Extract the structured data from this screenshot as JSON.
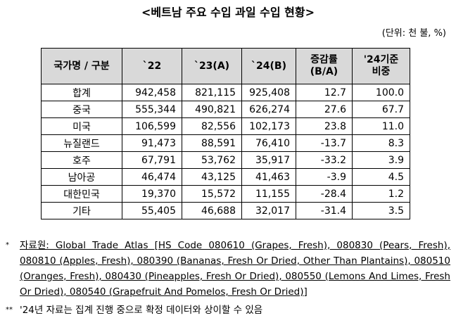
{
  "title": "<베트남 주요 수입 과일 수입 현황>",
  "unit": "(단위: 천 불, %)",
  "table": {
    "header": [
      "국가명 / 구분",
      "`22",
      "`23(A)",
      "`24(B)",
      "증감률\n(B/A)",
      "'24기준\n비중"
    ],
    "rows": [
      [
        "합계",
        "942,458",
        "821,115",
        "925,408",
        "12.7",
        "100.0"
      ],
      [
        "중국",
        "555,344",
        "490,821",
        "626,274",
        "27.6",
        "67.7"
      ],
      [
        "미국",
        "106,599",
        "82,556",
        "102,173",
        "23.8",
        "11.0"
      ],
      [
        "뉴질랜드",
        "91,473",
        "88,591",
        "76,410",
        "-13.7",
        "8.3"
      ],
      [
        "호주",
        "67,791",
        "53,762",
        "35,917",
        "-33.2",
        "3.9"
      ],
      [
        "남아공",
        "46,474",
        "43,125",
        "41,463",
        "-3.9",
        "4.5"
      ],
      [
        "대한민국",
        "19,370",
        "15,572",
        "11,155",
        "-28.4",
        "1.2"
      ],
      [
        "기타",
        "55,405",
        "46,688",
        "32,017",
        "-31.4",
        "3.5"
      ]
    ]
  },
  "notes": [
    {
      "marker": "*",
      "text": "자료원: Global Trade Atlas [HS Code 080610 (Grapes, Fresh), 080830 (Pears, Fresh), 080810 (Apples, Fresh), 080390 (Bananas, Fresh Or Dried, Other Than Plantains), 080510 (Oranges, Fresh), 080430 (Pineapples, Fresh Or Dried), 080550 (Lemons And Limes, Fresh Or Dried), 080540 (Grapefruit And Pomelos, Fresh Or Dried)]"
    },
    {
      "marker": "**",
      "text": "'24년 자료는 집계 진행 중으로 확정 데이터와 상이할 수 있음"
    }
  ]
}
